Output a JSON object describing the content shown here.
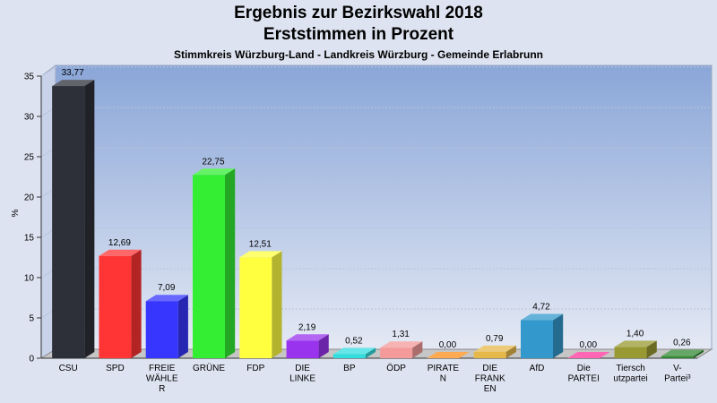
{
  "chart_data": {
    "type": "bar",
    "title": "Ergebnis zur Bezirkswahl 2018",
    "subtitle": "Erststimmen in Prozent",
    "subsubtitle": "Stimmkreis Würzburg-Land - Landkreis Würzburg - Gemeinde Erlabrunn",
    "ylabel": "%",
    "ylim": [
      0,
      35
    ],
    "yticks": [
      0,
      5,
      10,
      15,
      20,
      25,
      30,
      35
    ],
    "grid": true,
    "bars": [
      {
        "label": [
          "CSU"
        ],
        "value": 33.77,
        "value_label": "33,77",
        "color": "#2e3039"
      },
      {
        "label": [
          "SPD"
        ],
        "value": 12.69,
        "value_label": "12,69",
        "color": "#ff3535"
      },
      {
        "label": [
          "FREIE",
          "WÄHLE",
          "R"
        ],
        "value": 7.09,
        "value_label": "7,09",
        "color": "#3636ff"
      },
      {
        "label": [
          "GRÜNE"
        ],
        "value": 22.75,
        "value_label": "22,75",
        "color": "#33ee33"
      },
      {
        "label": [
          "FDP"
        ],
        "value": 12.51,
        "value_label": "12,51",
        "color": "#ffff40"
      },
      {
        "label": [
          "DIE",
          "LINKE"
        ],
        "value": 2.19,
        "value_label": "2,19",
        "color": "#9933ee"
      },
      {
        "label": [
          "BP"
        ],
        "value": 0.52,
        "value_label": "0,52",
        "color": "#33dddd"
      },
      {
        "label": [
          "ÖDP"
        ],
        "value": 1.31,
        "value_label": "1,31",
        "color": "#f49a9a"
      },
      {
        "label": [
          "PIRATE",
          "N"
        ],
        "value": 0.0,
        "value_label": "0,00",
        "color": "#ff8c1a"
      },
      {
        "label": [
          "DIE",
          "FRANK",
          "EN"
        ],
        "value": 0.79,
        "value_label": "0,79",
        "color": "#e6b84a"
      },
      {
        "label": [
          "AfD"
        ],
        "value": 4.72,
        "value_label": "4,72",
        "color": "#3399cc"
      },
      {
        "label": [
          "Die",
          "PARTEI"
        ],
        "value": 0.0,
        "value_label": "0,00",
        "color": "#ff3399"
      },
      {
        "label": [
          "Tiersch",
          "utzpartei"
        ],
        "value": 1.4,
        "value_label": "1,40",
        "color": "#999933"
      },
      {
        "label": [
          "V-",
          "Partei³"
        ],
        "value": 0.26,
        "value_label": "0,26",
        "color": "#338833"
      }
    ]
  }
}
